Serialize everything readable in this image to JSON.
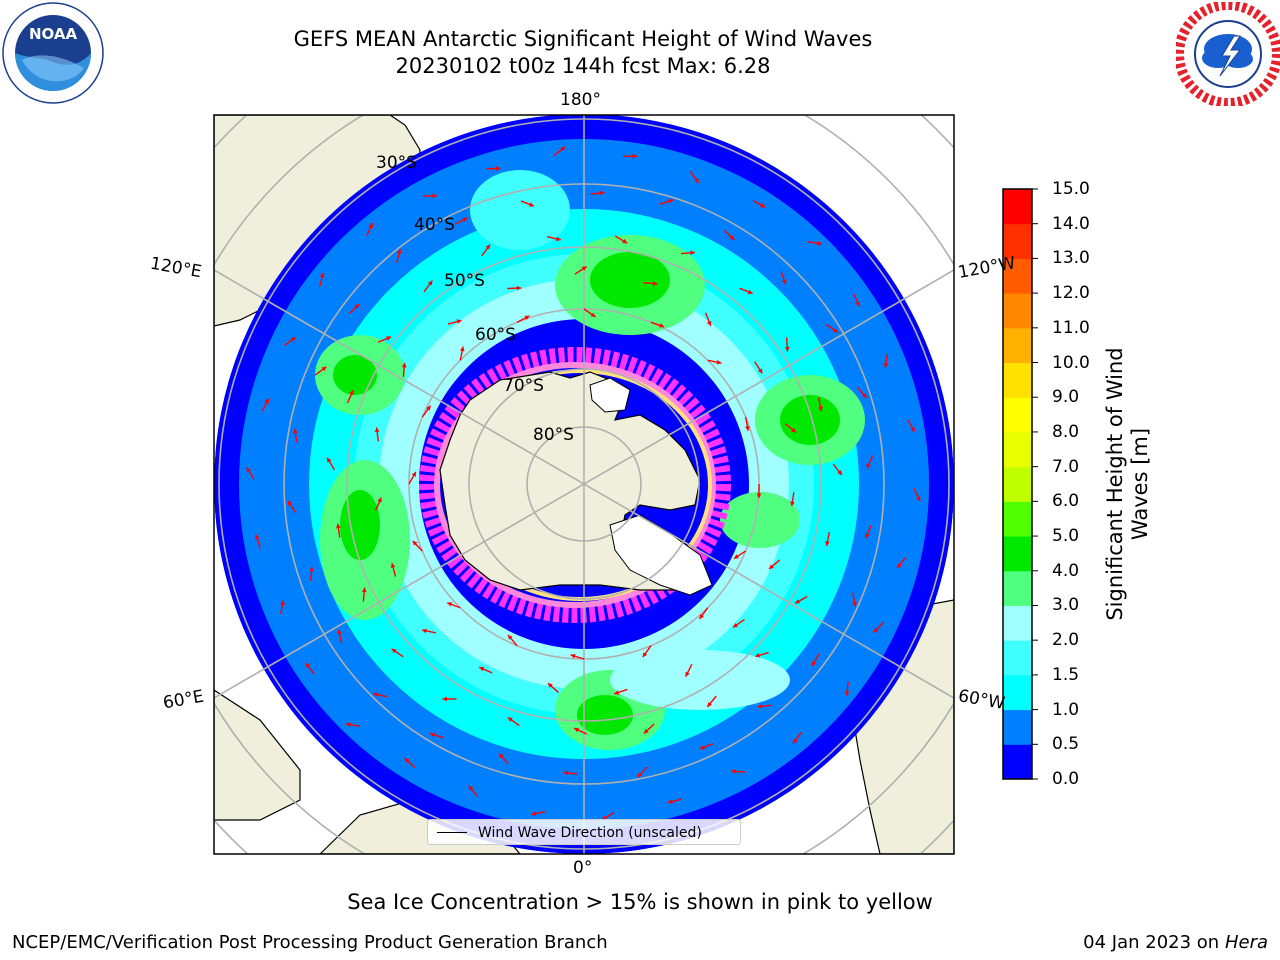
{
  "title": {
    "line1": "GEFS MEAN Antarctic Significant Height of Wind Waves",
    "line2": "20230102 t00z 144h fcst   Max: 6.28"
  },
  "logos": {
    "left": "NOAA",
    "left_icon": "noaa-logo",
    "right_icon": "national-weather-service-logo"
  },
  "map": {
    "projection": "south-polar-stereographic",
    "lon_labels": {
      "top": "180°",
      "left_upper": "120°E",
      "right_upper": "120°W",
      "left_lower": "60°E",
      "right_lower": "60°W",
      "bottom": "0°"
    },
    "lat_labels": [
      "30°S",
      "40°S",
      "50°S",
      "60°S",
      "70°S",
      "80°S"
    ],
    "legend": "Wind Wave Direction (unscaled)",
    "colors": {
      "land": "#efefdc",
      "ocean_low": "#0000ff",
      "sea_ice": "#ff33ff",
      "arrow": "#ff0000"
    }
  },
  "colorbar": {
    "label": "Significant Height of Wind Waves [m]",
    "ticks": [
      "0.0",
      "0.5",
      "1.0",
      "1.5",
      "2.0",
      "3.0",
      "4.0",
      "5.0",
      "6.0",
      "7.0",
      "8.0",
      "9.0",
      "10.0",
      "11.0",
      "12.0",
      "13.0",
      "14.0",
      "15.0"
    ],
    "colors": [
      "#0000ff",
      "#0080ff",
      "#00ffff",
      "#40ffff",
      "#a0ffff",
      "#50ff80",
      "#00e800",
      "#50ff00",
      "#c0ff00",
      "#e8ff00",
      "#ffff00",
      "#ffe000",
      "#ffb000",
      "#ff8800",
      "#ff5c00",
      "#ff3000",
      "#ff0000"
    ]
  },
  "note": "Sea Ice Concentration > 15% is shown in pink to yellow",
  "footer": {
    "left": "NCEP/EMC/Verification Post Processing Product Generation Branch",
    "right_prefix": "04 Jan 2023 on ",
    "right_machine": "Hera"
  }
}
